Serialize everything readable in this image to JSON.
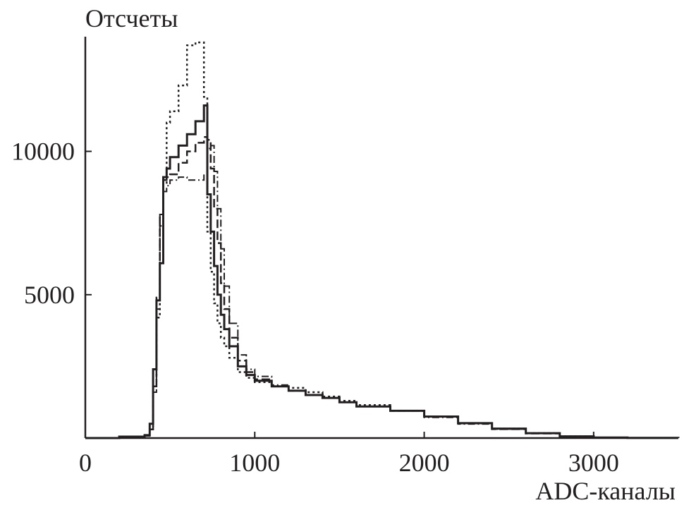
{
  "chart_data": {
    "type": "line",
    "ylabel": "Отсчеты",
    "xlabel": "ADC-каналы",
    "xlim": [
      0,
      3500
    ],
    "ylim": [
      0,
      14000
    ],
    "x_ticks": [
      0,
      1000,
      2000,
      3000
    ],
    "y_ticks": [
      5000,
      10000
    ],
    "grid": false,
    "series": [
      {
        "style": "solid",
        "x": [
          0,
          200,
          350,
          380,
          400,
          420,
          440,
          460,
          480,
          500,
          550,
          600,
          650,
          700,
          720,
          740,
          760,
          780,
          800,
          820,
          850,
          900,
          950,
          1000,
          1100,
          1200,
          1300,
          1400,
          1500,
          1600,
          1800,
          2000,
          2200,
          2400,
          2600,
          2800,
          3000,
          3200,
          3500
        ],
        "y": [
          0,
          50,
          100,
          500,
          2400,
          4800,
          6100,
          9100,
          9400,
          9800,
          10200,
          10600,
          11050,
          11600,
          8500,
          7200,
          6000,
          5000,
          4300,
          3800,
          3200,
          2500,
          2200,
          2000,
          1800,
          1650,
          1500,
          1400,
          1250,
          1100,
          950,
          750,
          520,
          330,
          170,
          60,
          20,
          5,
          0
        ]
      },
      {
        "style": "dashed",
        "x": [
          0,
          200,
          350,
          380,
          400,
          420,
          440,
          460,
          480,
          500,
          550,
          600,
          650,
          700,
          720,
          740,
          760,
          780,
          800,
          820,
          850,
          900,
          950,
          1000,
          1100,
          1200,
          1300,
          1400,
          1500,
          1600,
          1800,
          2000,
          2200,
          2400,
          2600,
          2800,
          3000,
          3200,
          3500
        ],
        "y": [
          0,
          50,
          80,
          300,
          1800,
          4900,
          7700,
          9000,
          9100,
          9200,
          9600,
          10000,
          10300,
          10500,
          10400,
          9400,
          8000,
          6800,
          5400,
          4500,
          3500,
          2700,
          2300,
          2050,
          1800,
          1650,
          1500,
          1400,
          1250,
          1100,
          950,
          750,
          510,
          310,
          160,
          55,
          18,
          5,
          0
        ]
      },
      {
        "style": "dotted",
        "x": [
          0,
          200,
          350,
          380,
          400,
          420,
          440,
          460,
          480,
          500,
          550,
          600,
          650,
          700,
          720,
          740,
          760,
          780,
          800,
          820,
          850,
          900,
          950,
          1000,
          1100,
          1200,
          1300,
          1400,
          1500,
          1600,
          1800,
          2000,
          2200,
          2400,
          2600,
          2800,
          3000,
          3200,
          3500
        ],
        "y": [
          0,
          50,
          80,
          300,
          2000,
          4200,
          7400,
          8900,
          11000,
          11400,
          12300,
          13700,
          13800,
          11900,
          7200,
          5800,
          4700,
          4000,
          3500,
          3200,
          2800,
          2300,
          2100,
          1950,
          1800,
          1750,
          1600,
          1450,
          1300,
          1150,
          950,
          750,
          520,
          330,
          170,
          60,
          20,
          5,
          0
        ]
      },
      {
        "style": "dashdot",
        "x": [
          0,
          200,
          350,
          380,
          400,
          420,
          440,
          460,
          480,
          500,
          550,
          600,
          650,
          700,
          720,
          740,
          760,
          780,
          800,
          820,
          850,
          900,
          950,
          1000,
          1100,
          1200,
          1300,
          1400,
          1500,
          1600,
          1800,
          2000,
          2200,
          2400,
          2600,
          2800,
          3000,
          3200,
          3500
        ],
        "y": [
          0,
          50,
          80,
          300,
          1600,
          4500,
          7800,
          8600,
          8800,
          9000,
          9100,
          9000,
          9000,
          9200,
          10100,
          10200,
          9300,
          8000,
          6600,
          5300,
          4000,
          2900,
          2400,
          2150,
          1850,
          1650,
          1500,
          1400,
          1250,
          1100,
          950,
          720,
          490,
          310,
          160,
          55,
          18,
          5,
          0
        ]
      }
    ]
  }
}
